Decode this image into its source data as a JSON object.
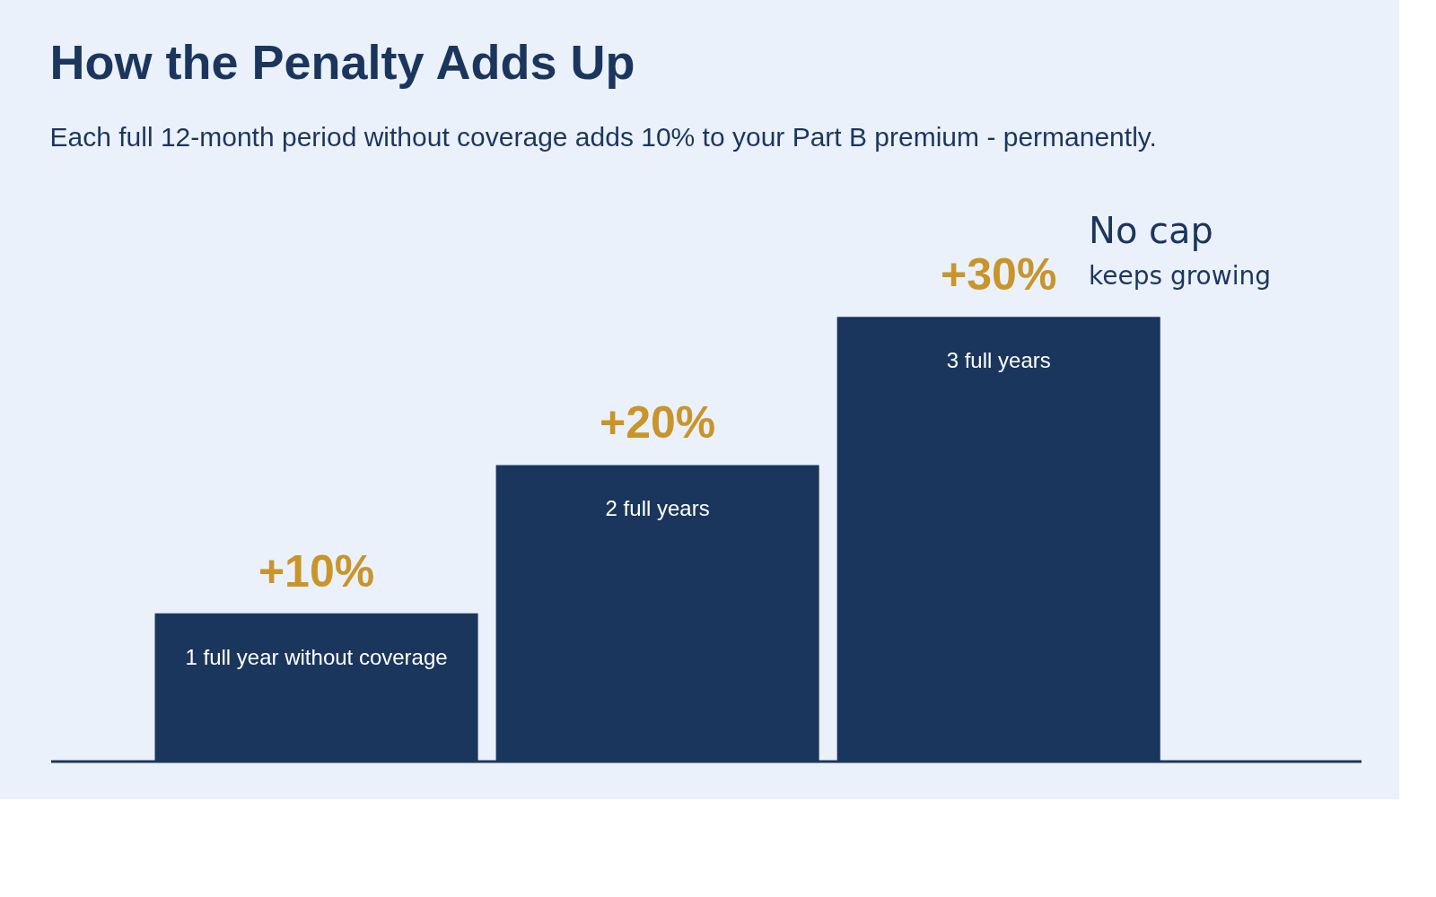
{
  "chart_data": {
    "type": "bar",
    "title": "How the Penalty Adds Up",
    "subtitle": "Each full 12-month period without coverage adds 10% to your Part B premium - permanently.",
    "categories": [
      "1 full year without coverage",
      "2 full years",
      "3 full years"
    ],
    "values": [
      10,
      20,
      30
    ],
    "value_labels": [
      "+10%",
      "+20%",
      "+30%"
    ],
    "color": "#1b365d",
    "annotations": [
      "No cap",
      "keeps growing"
    ]
  }
}
